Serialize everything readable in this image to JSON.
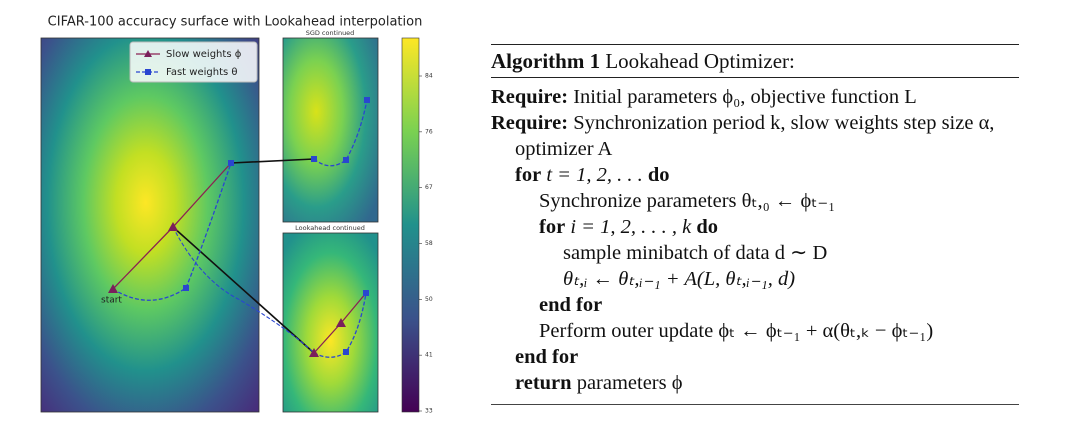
{
  "figure": {
    "title": "CIFAR-100 accuracy surface with Lookahead interpolation",
    "panels": [
      "SGD continued",
      "Lookahead continued"
    ],
    "legend": [
      "Slow weights ϕ",
      "Fast weights θ"
    ],
    "start_label": "start",
    "colorbar_ticks": [
      "84",
      "76",
      "67",
      "58",
      "50",
      "41",
      "33"
    ]
  },
  "algorithm": {
    "label": "Algorithm 1",
    "title": "Lookahead Optimizer:",
    "lines": [
      [
        "Require:",
        "Initial parameters ϕ₀, objective function L"
      ],
      [
        "Require:",
        "Synchronization period k, slow weights step size α, optimizer A"
      ],
      [
        "for",
        "t = 1, 2, . . .",
        "do"
      ],
      [
        "Synchronize parameters θₜ,₀ ← ϕₜ₋₁"
      ],
      [
        "for",
        "i = 1, 2, . . . , k",
        "do"
      ],
      [
        "sample minibatch of data d ∼ D"
      ],
      [
        "θₜ,ᵢ ← θₜ,ᵢ₋₁ + A(L, θₜ,ᵢ₋₁, d)"
      ],
      [
        "end for"
      ],
      [
        "Perform outer update ϕₜ ← ϕₜ₋₁ + α(θₜ,ₖ − ϕₜ₋₁)"
      ],
      [
        "end for"
      ],
      [
        "return",
        "parameters ϕ"
      ]
    ]
  }
}
